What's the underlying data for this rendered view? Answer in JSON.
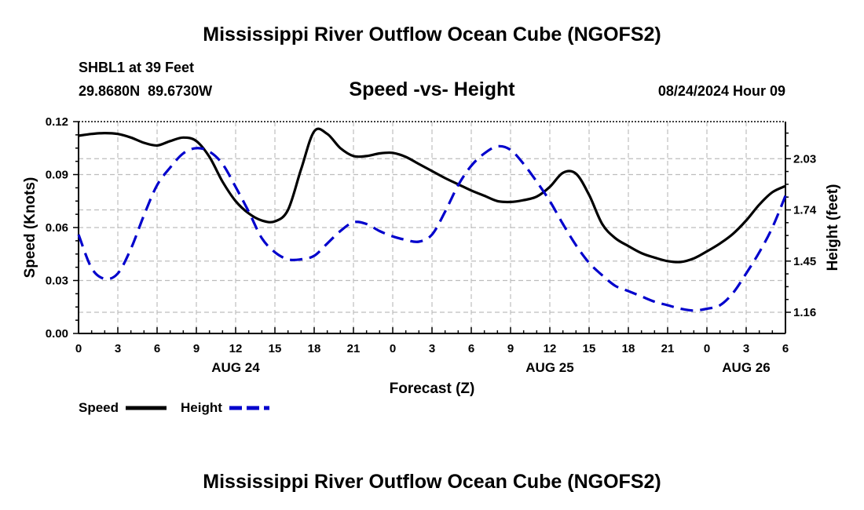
{
  "page_title": "Mississippi River Outflow Ocean Cube (NGOFS2)",
  "footer_title": "Mississippi River Outflow Ocean Cube (NGOFS2)",
  "station": "SHBL1 at 39 Feet",
  "coordinates": "29.8680N  89.6730W",
  "subtitle": "Speed -vs- Height",
  "datetime": "08/24/2024 Hour 09",
  "chart_data": {
    "type": "line",
    "title": "Speed -vs- Height",
    "xlabel": "Forecast (Z)",
    "ylabel": "Speed (Knots)",
    "y2label": "Height (feet)",
    "x_unit": "forecast hours from 08/24/2024 00Z",
    "xlim": [
      0,
      54
    ],
    "x_ticks": [
      0,
      3,
      6,
      9,
      12,
      15,
      18,
      21,
      24,
      27,
      30,
      33,
      36,
      39,
      42,
      45,
      48,
      51,
      54
    ],
    "x_tick_labels": [
      "0",
      "3",
      "6",
      "9",
      "12",
      "15",
      "18",
      "21",
      "0",
      "3",
      "6",
      "9",
      "12",
      "15",
      "18",
      "21",
      "0",
      "3",
      "6"
    ],
    "date_labels": [
      {
        "x": 12,
        "label": "AUG 24"
      },
      {
        "x": 36,
        "label": "AUG 25"
      },
      {
        "x": 51,
        "label": "AUG 26"
      }
    ],
    "ylim": [
      0,
      0.12
    ],
    "y_ticks": [
      0,
      0.03,
      0.06,
      0.09,
      0.12
    ],
    "y_tick_labels": [
      "0.00",
      "0.03",
      "0.06",
      "0.09",
      "0.12"
    ],
    "y2lim": [
      1.04,
      2.24
    ],
    "y2_ticks": [
      1.16,
      1.45,
      1.74,
      2.03
    ],
    "y2_tick_labels": [
      "1.16",
      "1.45",
      "1.74",
      "2.03"
    ],
    "grid": true,
    "legend": [
      {
        "name": "Speed",
        "color": "#000000",
        "style": "solid"
      },
      {
        "name": "Height",
        "color": "#0000cc",
        "style": "dashed"
      }
    ],
    "series": [
      {
        "name": "Speed",
        "axis": "left",
        "color": "#000000",
        "x": [
          0,
          1,
          2,
          3,
          4,
          5,
          6,
          7,
          8,
          9,
          10,
          11,
          12,
          13,
          14,
          15,
          16,
          17,
          18,
          19,
          20,
          21,
          22,
          23,
          24,
          25,
          26,
          27,
          28,
          29,
          30,
          31,
          32,
          33,
          34,
          35,
          36,
          37,
          38,
          39,
          40,
          41,
          42,
          43,
          44,
          45,
          46,
          47,
          48,
          49,
          50,
          51,
          52,
          53,
          54
        ],
        "values": [
          0.112,
          0.113,
          0.1135,
          0.113,
          0.111,
          0.108,
          0.1065,
          0.109,
          0.111,
          0.109,
          0.1,
          0.086,
          0.075,
          0.068,
          0.064,
          0.0635,
          0.07,
          0.093,
          0.1145,
          0.113,
          0.105,
          0.1005,
          0.1005,
          0.102,
          0.1023,
          0.1,
          0.096,
          0.092,
          0.088,
          0.0845,
          0.081,
          0.078,
          0.075,
          0.0745,
          0.0755,
          0.0775,
          0.083,
          0.091,
          0.0905,
          0.0785,
          0.062,
          0.054,
          0.0495,
          0.0455,
          0.043,
          0.041,
          0.0405,
          0.0425,
          0.0465,
          0.051,
          0.0565,
          0.064,
          0.073,
          0.08,
          0.0835
        ]
      },
      {
        "name": "Height",
        "axis": "right",
        "color": "#0000cc",
        "x": [
          0,
          1,
          2,
          3,
          4,
          5,
          6,
          7,
          8,
          9,
          10,
          11,
          12,
          13,
          14,
          15,
          16,
          17,
          18,
          19,
          20,
          21,
          22,
          23,
          24,
          25,
          26,
          27,
          28,
          29,
          30,
          31,
          32,
          33,
          34,
          35,
          36,
          37,
          38,
          39,
          40,
          41,
          42,
          43,
          44,
          45,
          46,
          47,
          48,
          49,
          50,
          51,
          52,
          53,
          54
        ],
        "values": [
          1.6,
          1.41,
          1.35,
          1.38,
          1.52,
          1.71,
          1.88,
          1.98,
          2.06,
          2.09,
          2.07,
          2.0,
          1.87,
          1.73,
          1.58,
          1.5,
          1.46,
          1.46,
          1.48,
          1.55,
          1.62,
          1.67,
          1.66,
          1.62,
          1.59,
          1.57,
          1.56,
          1.6,
          1.73,
          1.88,
          1.99,
          2.06,
          2.1,
          2.08,
          2.0,
          1.9,
          1.79,
          1.66,
          1.54,
          1.44,
          1.37,
          1.31,
          1.28,
          1.25,
          1.22,
          1.2,
          1.18,
          1.17,
          1.18,
          1.2,
          1.27,
          1.38,
          1.5,
          1.64,
          1.82
        ]
      }
    ]
  }
}
